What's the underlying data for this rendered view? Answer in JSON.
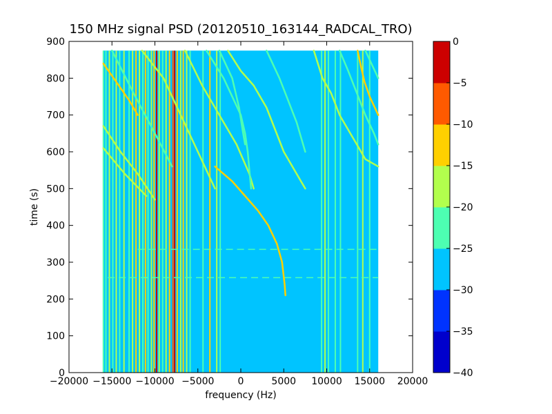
{
  "chart_data": {
    "type": "heatmap",
    "title": "150 MHz signal PSD (20120510_163144_RADCAL_TRO)",
    "xlabel": "frequency (Hz)",
    "ylabel": "time (s)",
    "xlim": [
      -20000,
      20000
    ],
    "ylim": [
      0,
      900
    ],
    "xticks": [
      -20000,
      -15000,
      -10000,
      -5000,
      0,
      5000,
      10000,
      15000,
      20000
    ],
    "xtick_labels": [
      "−20000",
      "−15000",
      "−10000",
      "−5000",
      "0",
      "5000",
      "10000",
      "15000",
      "20000"
    ],
    "yticks": [
      0,
      100,
      200,
      300,
      400,
      500,
      600,
      700,
      800,
      900
    ],
    "ytick_labels": [
      "0",
      "100",
      "200",
      "300",
      "400",
      "500",
      "600",
      "700",
      "800",
      "900"
    ],
    "data_extent": {
      "x": [
        -16000,
        16000
      ],
      "y": [
        0,
        875
      ]
    },
    "background_level": -27.5,
    "colorbar": {
      "levels": [
        -40,
        -35,
        -30,
        -25,
        -20,
        -15,
        -10,
        -5,
        0
      ],
      "tick_labels": [
        "−40",
        "−35",
        "−30",
        "−25",
        "−20",
        "−15",
        "−10",
        "−5",
        "0"
      ],
      "colors": [
        "#0000cc",
        "#0033ff",
        "#00c4ff",
        "#4dffb2",
        "#b2ff4d",
        "#ffd000",
        "#ff5a00",
        "#cc0000"
      ]
    },
    "vertical_lines": [
      {
        "x": -16000,
        "level": -22
      },
      {
        "x": -15700,
        "level": -22
      },
      {
        "x": -15300,
        "level": -18
      },
      {
        "x": -14900,
        "level": -22
      },
      {
        "x": -14500,
        "level": -18
      },
      {
        "x": -14100,
        "level": -22
      },
      {
        "x": -13600,
        "level": -18
      },
      {
        "x": -13000,
        "level": -22
      },
      {
        "x": -12600,
        "level": -18
      },
      {
        "x": -12200,
        "level": -13
      },
      {
        "x": -11800,
        "level": -18
      },
      {
        "x": -11400,
        "level": -22
      },
      {
        "x": -11100,
        "level": -13
      },
      {
        "x": -10800,
        "level": -22
      },
      {
        "x": -10400,
        "level": -18
      },
      {
        "x": -10100,
        "level": -13
      },
      {
        "x": -9800,
        "level": -3
      },
      {
        "x": -9500,
        "level": -18
      },
      {
        "x": -9100,
        "level": -22
      },
      {
        "x": -8700,
        "level": -18
      },
      {
        "x": -8300,
        "level": -13
      },
      {
        "x": -7900,
        "level": -8
      },
      {
        "x": -7700,
        "level": -3
      },
      {
        "x": -7400,
        "level": -13
      },
      {
        "x": -7000,
        "level": -18
      },
      {
        "x": -6700,
        "level": -13
      },
      {
        "x": -6300,
        "level": -18
      },
      {
        "x": -5900,
        "level": -22
      },
      {
        "x": -4400,
        "level": -22
      },
      {
        "x": -3600,
        "level": -13
      },
      {
        "x": -2800,
        "level": -18
      },
      {
        "x": -2400,
        "level": -22
      },
      {
        "x": 9400,
        "level": -22
      },
      {
        "x": 9800,
        "level": -18
      },
      {
        "x": 10200,
        "level": -22
      },
      {
        "x": 11000,
        "level": -22
      },
      {
        "x": 11600,
        "level": -22
      },
      {
        "x": 13600,
        "level": -22
      },
      {
        "x": 14200,
        "level": -18
      },
      {
        "x": 15000,
        "level": -22
      }
    ],
    "curves": [
      {
        "level": -13,
        "points": [
          [
            -16000,
            840
          ],
          [
            -14500,
            790
          ],
          [
            -13000,
            740
          ],
          [
            -12000,
            700
          ]
        ]
      },
      {
        "level": -18,
        "points": [
          [
            -16000,
            670
          ],
          [
            -14000,
            600
          ],
          [
            -12000,
            540
          ],
          [
            -10000,
            470
          ]
        ]
      },
      {
        "level": -18,
        "points": [
          [
            -16000,
            610
          ],
          [
            -13500,
            540
          ],
          [
            -11000,
            480
          ]
        ]
      },
      {
        "level": -22,
        "points": [
          [
            -15000,
            875
          ],
          [
            -12500,
            760
          ],
          [
            -10000,
            650
          ],
          [
            -8000,
            560
          ]
        ]
      },
      {
        "level": -18,
        "points": [
          [
            -11500,
            875
          ],
          [
            -9000,
            800
          ],
          [
            -7000,
            700
          ],
          [
            -5000,
            600
          ],
          [
            -3000,
            500
          ]
        ]
      },
      {
        "level": -18,
        "points": [
          [
            -6500,
            875
          ],
          [
            -4500,
            780
          ],
          [
            -2500,
            700
          ],
          [
            -500,
            620
          ],
          [
            1000,
            540
          ],
          [
            1500,
            500
          ]
        ]
      },
      {
        "level": -13,
        "points": [
          [
            -3000,
            560
          ],
          [
            -1000,
            520
          ],
          [
            500,
            480
          ],
          [
            2000,
            440
          ],
          [
            3200,
            400
          ],
          [
            4200,
            350
          ],
          [
            4800,
            300
          ],
          [
            5100,
            240
          ],
          [
            5200,
            210
          ]
        ]
      },
      {
        "level": -22,
        "points": [
          [
            -4000,
            875
          ],
          [
            -2000,
            800
          ],
          [
            0,
            700
          ],
          [
            500,
            650
          ],
          [
            800,
            600
          ],
          [
            1000,
            550
          ],
          [
            1200,
            500
          ]
        ]
      },
      {
        "level": -22,
        "points": [
          [
            -2500,
            875
          ],
          [
            -1000,
            800
          ],
          [
            -200,
            720
          ],
          [
            200,
            660
          ],
          [
            500,
            620
          ]
        ]
      },
      {
        "level": -18,
        "points": [
          [
            -1500,
            875
          ],
          [
            0,
            820
          ],
          [
            1500,
            780
          ],
          [
            3000,
            720
          ],
          [
            4000,
            660
          ],
          [
            5000,
            600
          ],
          [
            6000,
            560
          ],
          [
            7000,
            520
          ],
          [
            7500,
            500
          ]
        ]
      },
      {
        "level": -22,
        "points": [
          [
            3000,
            875
          ],
          [
            4500,
            800
          ],
          [
            5500,
            740
          ],
          [
            6500,
            680
          ],
          [
            7500,
            600
          ]
        ]
      },
      {
        "level": -18,
        "points": [
          [
            8500,
            875
          ],
          [
            9500,
            800
          ],
          [
            10500,
            760
          ],
          [
            11500,
            700
          ],
          [
            12500,
            660
          ],
          [
            13500,
            620
          ],
          [
            14500,
            580
          ],
          [
            16000,
            560
          ]
        ]
      },
      {
        "level": -13,
        "points": [
          [
            13600,
            875
          ],
          [
            14000,
            830
          ],
          [
            14400,
            790
          ],
          [
            15000,
            750
          ],
          [
            16000,
            700
          ]
        ]
      },
      {
        "level": -22,
        "points": [
          [
            11500,
            875
          ],
          [
            12500,
            820
          ],
          [
            13500,
            760
          ],
          [
            14500,
            700
          ],
          [
            15500,
            650
          ],
          [
            16000,
            620
          ]
        ]
      },
      {
        "level": -22,
        "points": [
          [
            14500,
            875
          ],
          [
            15200,
            840
          ],
          [
            16000,
            800
          ]
        ]
      }
    ],
    "horizontal_lines": [
      {
        "y": 335,
        "x": [
          -12000,
          16000
        ],
        "level": -22
      },
      {
        "y": 258,
        "x": [
          -15500,
          16000
        ],
        "level": -22
      }
    ]
  }
}
